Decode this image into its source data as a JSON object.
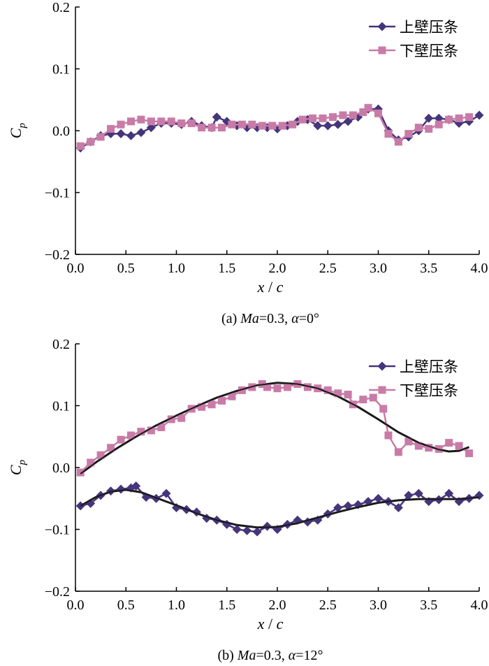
{
  "chart_data": [
    {
      "type": "line",
      "caption": "(a) Ma=0.3, α=0°",
      "caption_parts": {
        "prefix": "(a) ",
        "ma": "Ma",
        "mid": "=0.3, ",
        "alpha": "α",
        "suffix": "=0°"
      },
      "xlabel": "x / c",
      "xlabel_parts": {
        "x": "x",
        "sep": " / ",
        "c": "c"
      },
      "ylabel": "Cp",
      "ylabel_parts": {
        "main": "C",
        "sub": "p"
      },
      "xlim": [
        0,
        4
      ],
      "ylim": [
        -0.2,
        0.2
      ],
      "xticks": [
        "0.0",
        "0.5",
        "1.0",
        "1.5",
        "2.0",
        "2.5",
        "3.0",
        "3.5",
        "4.0"
      ],
      "yticks": [
        "0.2",
        "0.1",
        "0.0",
        "−0.1",
        "−0.2"
      ],
      "legend_position": "top-right",
      "series": [
        {
          "name": "上壁压条",
          "color": "#45357a",
          "marker": "diamond",
          "points": [
            [
              0.05,
              -0.028
            ],
            [
              0.15,
              -0.018
            ],
            [
              0.25,
              -0.008
            ],
            [
              0.35,
              -0.005
            ],
            [
              0.45,
              -0.005
            ],
            [
              0.55,
              -0.008
            ],
            [
              0.65,
              -0.003
            ],
            [
              0.75,
              0.005
            ],
            [
              0.85,
              0.012
            ],
            [
              0.95,
              0.012
            ],
            [
              1.05,
              0.01
            ],
            [
              1.15,
              0.015
            ],
            [
              1.25,
              0.008
            ],
            [
              1.35,
              0.005
            ],
            [
              1.4,
              0.022
            ],
            [
              1.5,
              0.015
            ],
            [
              1.6,
              0.008
            ],
            [
              1.7,
              0.005
            ],
            [
              1.8,
              0.005
            ],
            [
              1.9,
              0.005
            ],
            [
              2.0,
              0.003
            ],
            [
              2.1,
              0.008
            ],
            [
              2.2,
              0.015
            ],
            [
              2.3,
              0.018
            ],
            [
              2.4,
              0.008
            ],
            [
              2.5,
              0.008
            ],
            [
              2.6,
              0.01
            ],
            [
              2.7,
              0.015
            ],
            [
              2.8,
              0.022
            ],
            [
              2.9,
              0.035
            ],
            [
              3.0,
              0.035
            ],
            [
              3.1,
              0.0
            ],
            [
              3.2,
              -0.015
            ],
            [
              3.3,
              -0.01
            ],
            [
              3.4,
              0.0
            ],
            [
              3.5,
              0.02
            ],
            [
              3.6,
              0.02
            ],
            [
              3.7,
              0.018
            ],
            [
              3.8,
              0.012
            ],
            [
              3.9,
              0.015
            ],
            [
              4.0,
              0.025
            ]
          ]
        },
        {
          "name": "下壁压条",
          "color": "#c97ba7",
          "marker": "square",
          "points": [
            [
              0.05,
              -0.025
            ],
            [
              0.15,
              -0.018
            ],
            [
              0.25,
              -0.01
            ],
            [
              0.35,
              0.003
            ],
            [
              0.45,
              0.01
            ],
            [
              0.55,
              0.015
            ],
            [
              0.65,
              0.018
            ],
            [
              0.75,
              0.015
            ],
            [
              0.85,
              0.015
            ],
            [
              0.95,
              0.015
            ],
            [
              1.05,
              0.012
            ],
            [
              1.15,
              0.012
            ],
            [
              1.25,
              0.005
            ],
            [
              1.35,
              0.005
            ],
            [
              1.45,
              0.005
            ],
            [
              1.55,
              0.01
            ],
            [
              1.65,
              0.01
            ],
            [
              1.75,
              0.01
            ],
            [
              1.85,
              0.008
            ],
            [
              1.95,
              0.008
            ],
            [
              2.05,
              0.008
            ],
            [
              2.15,
              0.01
            ],
            [
              2.25,
              0.018
            ],
            [
              2.35,
              0.02
            ],
            [
              2.45,
              0.02
            ],
            [
              2.55,
              0.022
            ],
            [
              2.65,
              0.025
            ],
            [
              2.75,
              0.025
            ],
            [
              2.85,
              0.03
            ],
            [
              2.9,
              0.037
            ],
            [
              3.0,
              0.028
            ],
            [
              3.1,
              -0.005
            ],
            [
              3.2,
              -0.018
            ],
            [
              3.3,
              -0.005
            ],
            [
              3.4,
              0.005
            ],
            [
              3.5,
              0.003
            ],
            [
              3.6,
              0.01
            ],
            [
              3.7,
              0.018
            ],
            [
              3.8,
              0.02
            ],
            [
              3.9,
              0.022
            ]
          ]
        }
      ]
    },
    {
      "type": "line",
      "caption": "(b) Ma=0.3, α=12°",
      "caption_parts": {
        "prefix": "(b) ",
        "ma": "Ma",
        "mid": "=0.3, ",
        "alpha": "α",
        "suffix": "=12°"
      },
      "xlabel": "x / c",
      "xlabel_parts": {
        "x": "x",
        "sep": " / ",
        "c": "c"
      },
      "ylabel": "Cp",
      "ylabel_parts": {
        "main": "C",
        "sub": "p"
      },
      "xlim": [
        0,
        4
      ],
      "ylim": [
        -0.2,
        0.2
      ],
      "xticks": [
        "0.0",
        "0.5",
        "1.0",
        "1.5",
        "2.0",
        "2.5",
        "3.0",
        "3.5",
        "4.0"
      ],
      "yticks": [
        "0.2",
        "0.1",
        "0.0",
        "−0.1",
        "−0.2"
      ],
      "legend_position": "top-right",
      "series": [
        {
          "name": "上壁压条",
          "color": "#45357a",
          "marker": "diamond",
          "points": [
            [
              0.05,
              -0.062
            ],
            [
              0.15,
              -0.058
            ],
            [
              0.25,
              -0.045
            ],
            [
              0.35,
              -0.038
            ],
            [
              0.45,
              -0.035
            ],
            [
              0.55,
              -0.033
            ],
            [
              0.6,
              -0.03
            ],
            [
              0.7,
              -0.048
            ],
            [
              0.8,
              -0.05
            ],
            [
              0.9,
              -0.042
            ],
            [
              1.0,
              -0.065
            ],
            [
              1.1,
              -0.068
            ],
            [
              1.2,
              -0.072
            ],
            [
              1.3,
              -0.082
            ],
            [
              1.4,
              -0.085
            ],
            [
              1.5,
              -0.092
            ],
            [
              1.6,
              -0.1
            ],
            [
              1.7,
              -0.102
            ],
            [
              1.8,
              -0.104
            ],
            [
              1.9,
              -0.095
            ],
            [
              2.0,
              -0.1
            ],
            [
              2.1,
              -0.092
            ],
            [
              2.2,
              -0.085
            ],
            [
              2.3,
              -0.088
            ],
            [
              2.4,
              -0.085
            ],
            [
              2.5,
              -0.075
            ],
            [
              2.6,
              -0.065
            ],
            [
              2.7,
              -0.062
            ],
            [
              2.8,
              -0.06
            ],
            [
              2.9,
              -0.055
            ],
            [
              3.0,
              -0.05
            ],
            [
              3.1,
              -0.055
            ],
            [
              3.2,
              -0.065
            ],
            [
              3.3,
              -0.045
            ],
            [
              3.4,
              -0.042
            ],
            [
              3.5,
              -0.055
            ],
            [
              3.6,
              -0.052
            ],
            [
              3.7,
              -0.042
            ],
            [
              3.8,
              -0.055
            ],
            [
              3.9,
              -0.05
            ],
            [
              4.0,
              -0.045
            ]
          ]
        },
        {
          "name": "下壁压条",
          "color": "#c97ba7",
          "marker": "square",
          "points": [
            [
              0.05,
              -0.008
            ],
            [
              0.15,
              0.008
            ],
            [
              0.25,
              0.02
            ],
            [
              0.35,
              0.032
            ],
            [
              0.45,
              0.045
            ],
            [
              0.55,
              0.052
            ],
            [
              0.65,
              0.058
            ],
            [
              0.75,
              0.06
            ],
            [
              0.85,
              0.065
            ],
            [
              0.95,
              0.078
            ],
            [
              1.05,
              0.08
            ],
            [
              1.15,
              0.095
            ],
            [
              1.25,
              0.098
            ],
            [
              1.35,
              0.102
            ],
            [
              1.45,
              0.108
            ],
            [
              1.55,
              0.115
            ],
            [
              1.65,
              0.125
            ],
            [
              1.75,
              0.13
            ],
            [
              1.85,
              0.135
            ],
            [
              1.9,
              0.13
            ],
            [
              2.0,
              0.128
            ],
            [
              2.1,
              0.13
            ],
            [
              2.2,
              0.135
            ],
            [
              2.3,
              0.13
            ],
            [
              2.4,
              0.128
            ],
            [
              2.5,
              0.125
            ],
            [
              2.6,
              0.12
            ],
            [
              2.7,
              0.118
            ],
            [
              2.75,
              0.102
            ],
            [
              2.85,
              0.11
            ],
            [
              2.95,
              0.113
            ],
            [
              3.05,
              0.095
            ],
            [
              3.1,
              0.052
            ],
            [
              3.2,
              0.025
            ],
            [
              3.3,
              0.042
            ],
            [
              3.4,
              0.035
            ],
            [
              3.5,
              0.032
            ],
            [
              3.6,
              0.03
            ],
            [
              3.7,
              0.04
            ],
            [
              3.8,
              0.035
            ],
            [
              3.9,
              0.023
            ]
          ]
        }
      ],
      "fit_curves": [
        {
          "color": "#1a1a1a",
          "points": [
            [
              0.05,
              -0.062
            ],
            [
              0.2,
              -0.048
            ],
            [
              0.35,
              -0.039
            ],
            [
              0.5,
              -0.036
            ],
            [
              0.65,
              -0.04
            ],
            [
              0.8,
              -0.049
            ],
            [
              1.0,
              -0.061
            ],
            [
              1.2,
              -0.074
            ],
            [
              1.4,
              -0.085
            ],
            [
              1.6,
              -0.093
            ],
            [
              1.8,
              -0.097
            ],
            [
              2.0,
              -0.096
            ],
            [
              2.2,
              -0.09
            ],
            [
              2.4,
              -0.081
            ],
            [
              2.6,
              -0.072
            ],
            [
              2.8,
              -0.064
            ],
            [
              3.0,
              -0.057
            ],
            [
              3.2,
              -0.053
            ],
            [
              3.4,
              -0.051
            ],
            [
              3.6,
              -0.051
            ],
            [
              3.8,
              -0.051
            ],
            [
              4.0,
              -0.048
            ]
          ]
        },
        {
          "color": "#1a1a1a",
          "points": [
            [
              0.05,
              -0.01
            ],
            [
              0.2,
              0.008
            ],
            [
              0.4,
              0.03
            ],
            [
              0.6,
              0.05
            ],
            [
              0.8,
              0.068
            ],
            [
              1.0,
              0.084
            ],
            [
              1.2,
              0.099
            ],
            [
              1.4,
              0.113
            ],
            [
              1.6,
              0.124
            ],
            [
              1.8,
              0.133
            ],
            [
              2.0,
              0.137
            ],
            [
              2.2,
              0.135
            ],
            [
              2.4,
              0.128
            ],
            [
              2.6,
              0.115
            ],
            [
              2.8,
              0.098
            ],
            [
              3.0,
              0.078
            ],
            [
              3.2,
              0.057
            ],
            [
              3.4,
              0.04
            ],
            [
              3.6,
              0.029
            ],
            [
              3.7,
              0.026
            ],
            [
              3.8,
              0.027
            ],
            [
              3.9,
              0.033
            ]
          ]
        }
      ]
    }
  ]
}
